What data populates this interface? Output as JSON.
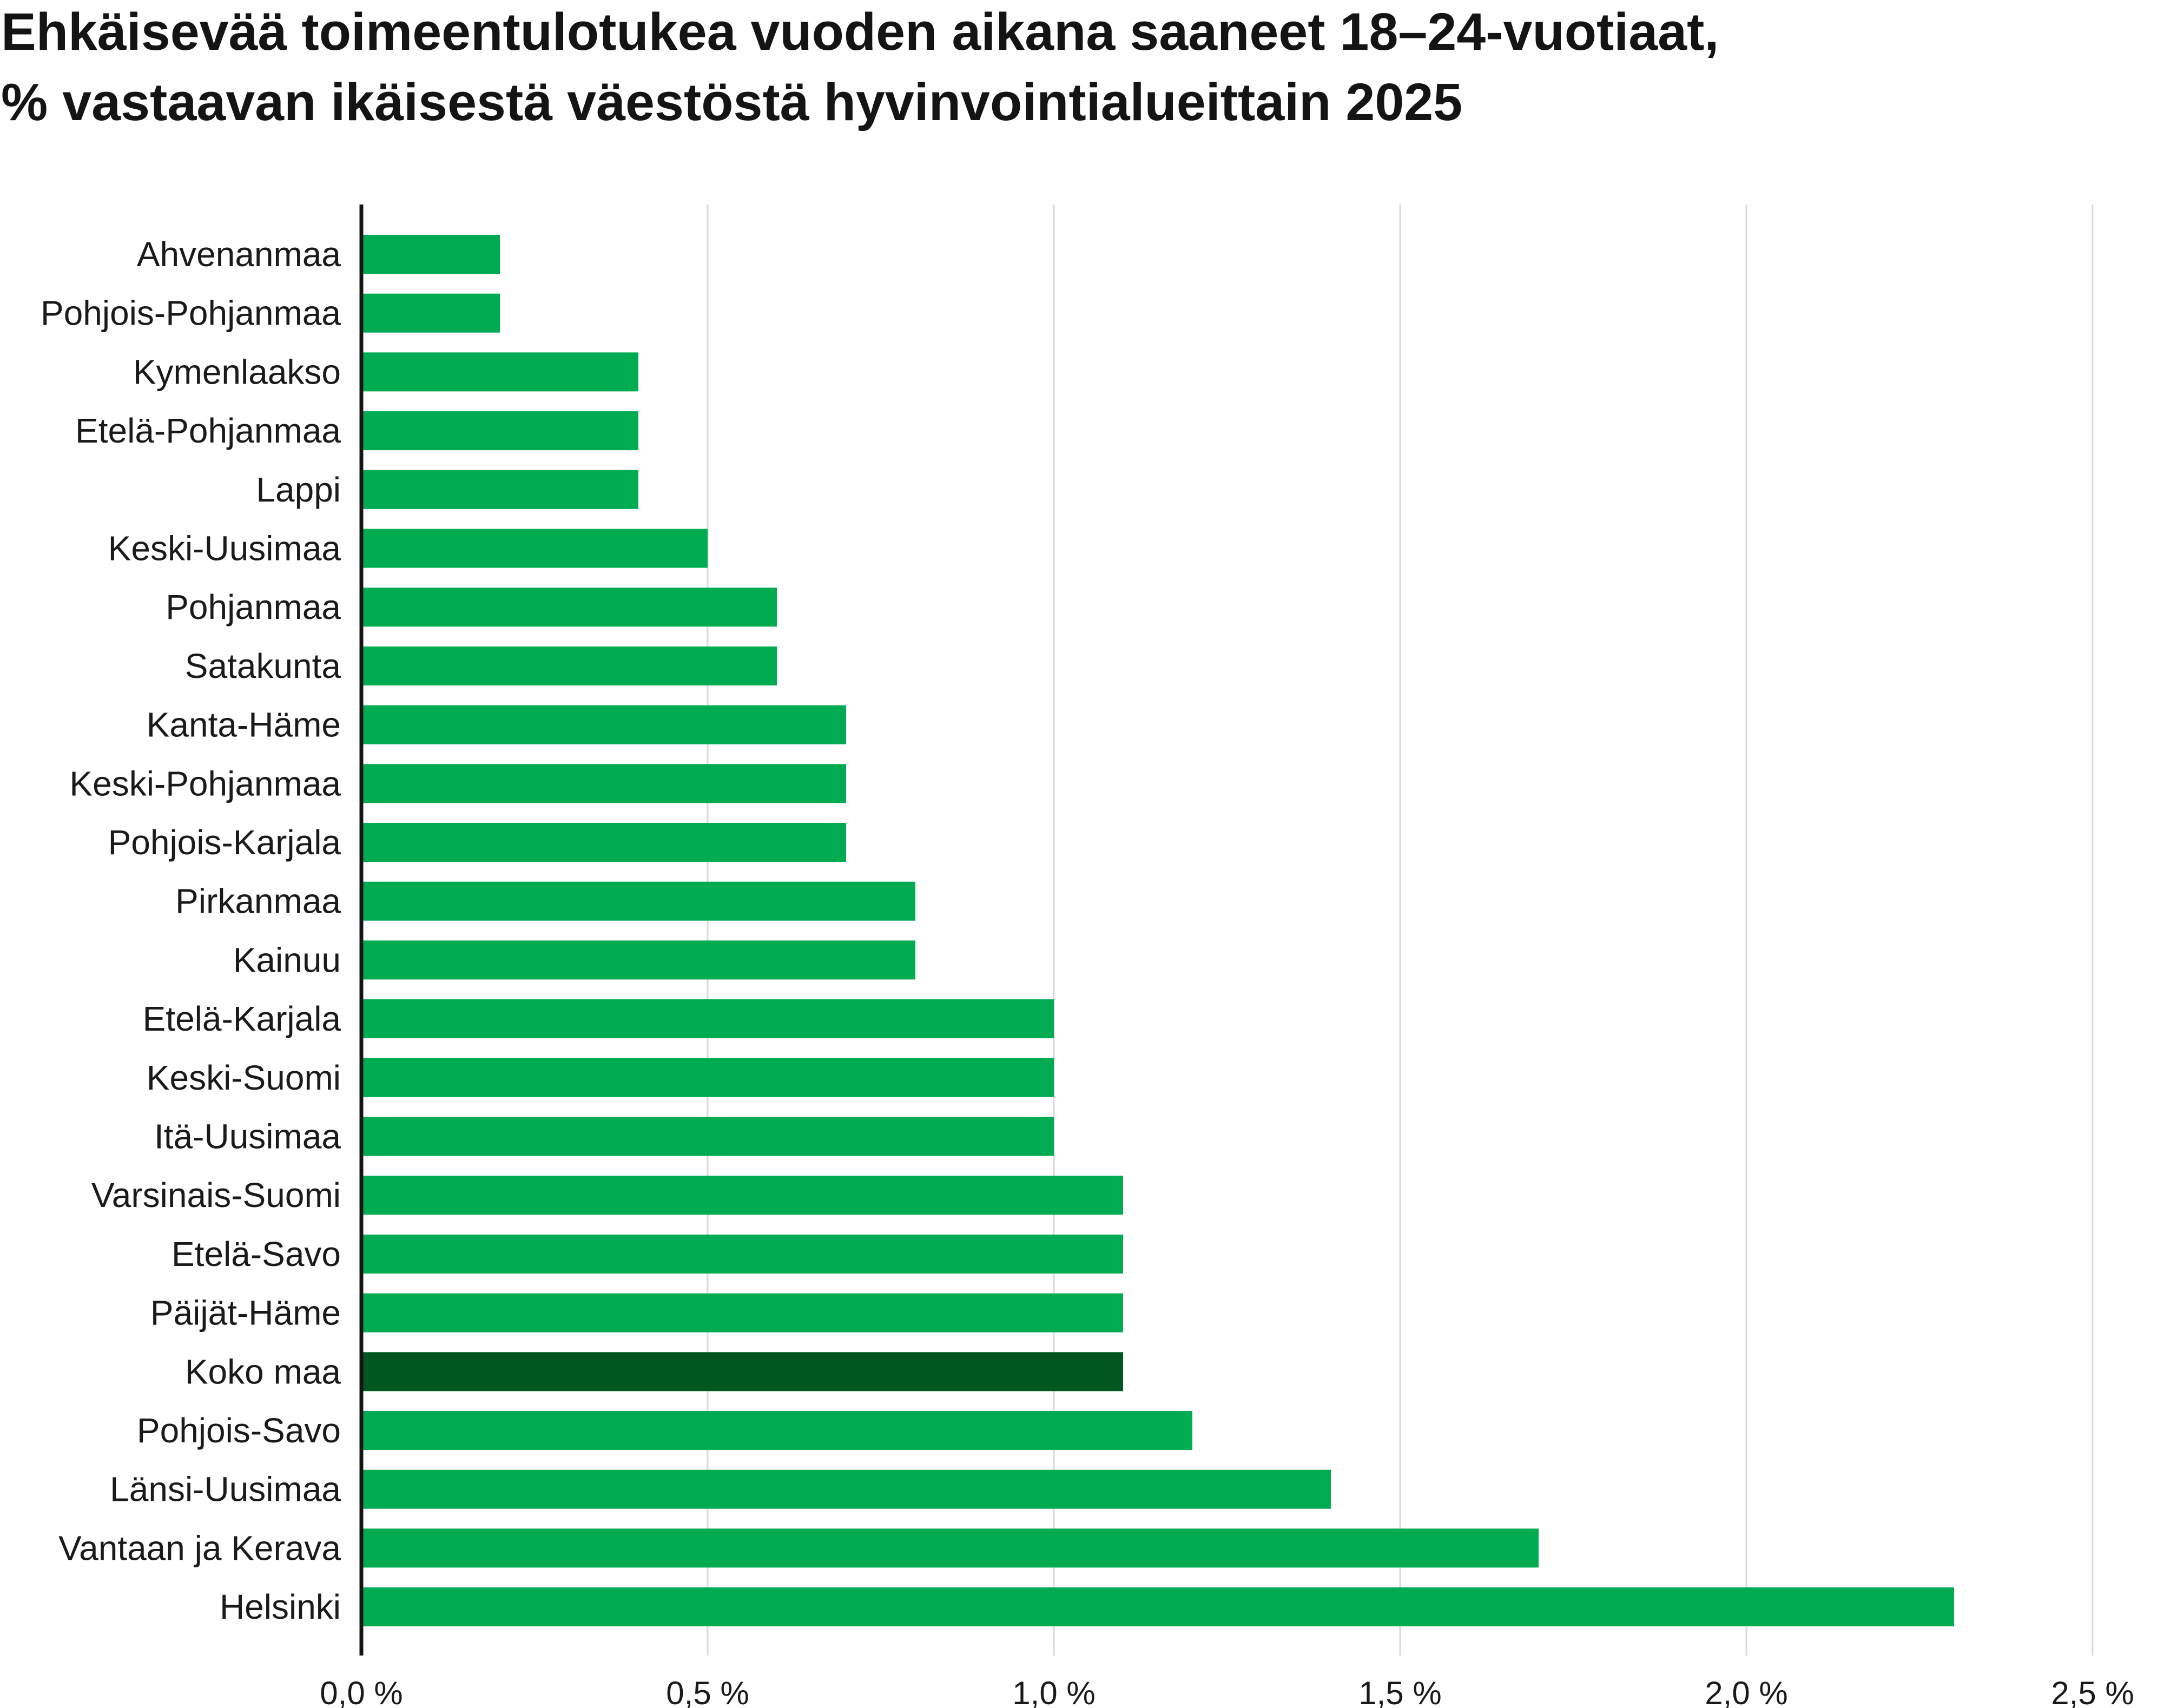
{
  "chart_data": {
    "type": "bar",
    "orientation": "horizontal",
    "title_lines": [
      "Ehkäisevää toimeentulotukea vuoden aikana saaneet 18–24-vuotiaat,",
      "% vastaavan ikäisestä väestöstä hyvinvointialueittain 2025"
    ],
    "xlabel": "",
    "ylabel": "",
    "xlim": [
      0,
      2.5
    ],
    "x_ticks": [
      0,
      0.5,
      1.0,
      1.5,
      2.0,
      2.5
    ],
    "x_tick_labels": [
      "0,0 %",
      "0,5 %",
      "1,0 %",
      "1,5 %",
      "2,0 %",
      "2,5 %"
    ],
    "grid": true,
    "legend": "none",
    "categories": [
      "Ahvenanmaa",
      "Pohjois-Pohjanmaa",
      "Kymenlaakso",
      "Etelä-Pohjanmaa",
      "Lappi",
      "Keski-Uusimaa",
      "Pohjanmaa",
      "Satakunta",
      "Kanta-Häme",
      "Keski-Pohjanmaa",
      "Pohjois-Karjala",
      "Pirkanmaa",
      "Kainuu",
      "Etelä-Karjala",
      "Keski-Suomi",
      "Itä-Uusimaa",
      "Varsinais-Suomi",
      "Etelä-Savo",
      "Päijät-Häme",
      "Koko maa",
      "Pohjois-Savo",
      "Länsi-Uusimaa",
      "Vantaan ja Kerava",
      "Helsinki"
    ],
    "values": [
      0.2,
      0.2,
      0.4,
      0.4,
      0.4,
      0.5,
      0.6,
      0.6,
      0.7,
      0.7,
      0.7,
      0.8,
      0.8,
      1.0,
      1.0,
      1.0,
      1.1,
      1.1,
      1.1,
      1.1,
      1.2,
      1.4,
      1.7,
      2.3
    ],
    "highlight_category": "Koko maa",
    "colors": {
      "bar": "#00ab51",
      "highlight": "#00561f",
      "grid": "#d9d9d9",
      "axis": "#141414",
      "text": "#1a1a1a"
    }
  }
}
